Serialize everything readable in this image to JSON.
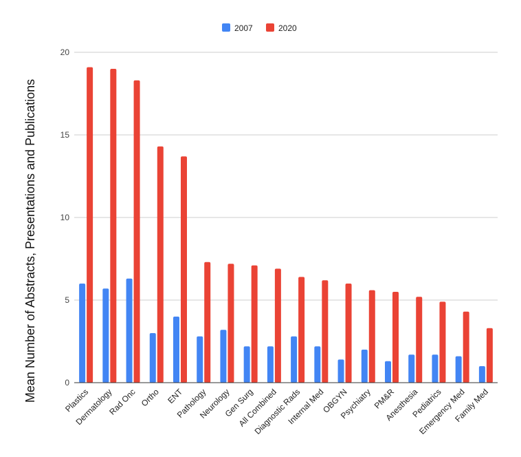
{
  "chart_data": {
    "type": "bar",
    "title": "",
    "xlabel": "",
    "ylabel": "Mean Number of Abstracts, Presentations and Publications",
    "ylim": [
      0,
      20
    ],
    "yticks": [
      "0",
      "5",
      "10",
      "15",
      "20"
    ],
    "grid": true,
    "legend_position": "top-center",
    "categories": [
      "Plastics",
      "Dermatology",
      "Rad Onc",
      "Ortho",
      "ENT",
      "Pathology",
      "Neurology",
      "Gen Surg",
      "All Combined",
      "Diagnostic Rads",
      "Internal Med",
      "OBGYN",
      "Psychiatry",
      "PM&R",
      "Anesthesia",
      "Pediatrics",
      "Emergency Med",
      "Family Med"
    ],
    "series": [
      {
        "name": "2007",
        "color": "#4285f4",
        "values": [
          6.0,
          5.7,
          6.3,
          3.0,
          4.0,
          2.8,
          3.2,
          2.2,
          2.2,
          2.8,
          2.2,
          1.4,
          2.0,
          1.3,
          1.7,
          1.7,
          1.6,
          1.0
        ]
      },
      {
        "name": "2020",
        "color": "#ea4335",
        "values": [
          19.1,
          19.0,
          18.3,
          14.3,
          13.7,
          7.3,
          7.2,
          7.1,
          6.9,
          6.4,
          6.2,
          6.0,
          5.6,
          5.5,
          5.2,
          4.9,
          4.3,
          3.3
        ]
      }
    ]
  }
}
